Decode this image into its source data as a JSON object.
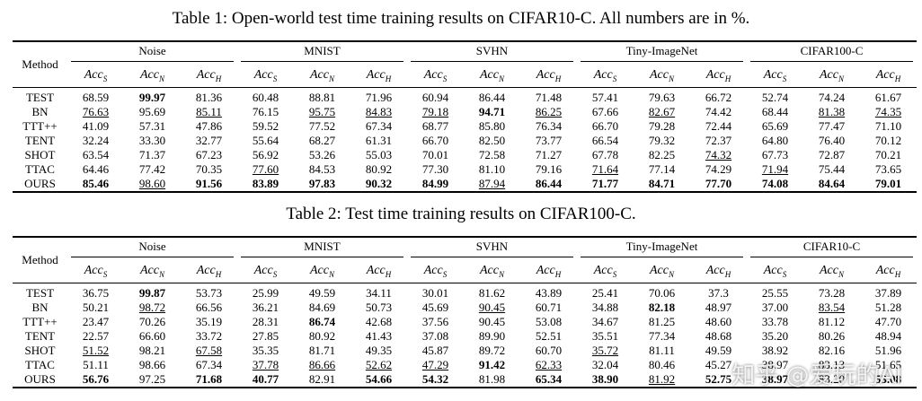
{
  "tables": [
    {
      "title": "Table 1: Open-world test time training results on CIFAR10-C. All numbers are in %.",
      "method_header": "Method",
      "groups": [
        "Noise",
        "MNIST",
        "SVHN",
        "Tiny-ImageNet",
        "CIFAR100-C"
      ],
      "subheaders": [
        {
          "base": "Acc",
          "sub": "S"
        },
        {
          "base": "Acc",
          "sub": "N"
        },
        {
          "base": "Acc",
          "sub": "H"
        }
      ],
      "rows": [
        {
          "method": "TEST",
          "values": [
            "68.59",
            "99.97",
            "81.36",
            "60.48",
            "88.81",
            "71.96",
            "60.94",
            "86.44",
            "71.48",
            "57.41",
            "79.63",
            "66.72",
            "52.74",
            "74.24",
            "61.67"
          ]
        },
        {
          "method": "BN",
          "values": [
            "76.63",
            "95.69",
            "85.11",
            "76.15",
            "95.75",
            "84.83",
            "79.18",
            "94.71",
            "86.25",
            "67.66",
            "82.67",
            "74.42",
            "68.44",
            "81.38",
            "74.35"
          ]
        },
        {
          "method": "TTT++",
          "values": [
            "41.09",
            "57.31",
            "47.86",
            "59.52",
            "77.52",
            "67.34",
            "68.77",
            "85.80",
            "76.34",
            "66.70",
            "79.28",
            "72.44",
            "65.69",
            "77.47",
            "71.10"
          ]
        },
        {
          "method": "TENT",
          "values": [
            "32.24",
            "33.30",
            "32.77",
            "55.64",
            "68.27",
            "61.31",
            "66.70",
            "82.50",
            "73.77",
            "66.54",
            "79.32",
            "72.37",
            "64.80",
            "76.40",
            "70.12"
          ]
        },
        {
          "method": "SHOT",
          "values": [
            "63.54",
            "71.37",
            "67.23",
            "56.92",
            "53.26",
            "55.03",
            "70.01",
            "72.58",
            "71.27",
            "67.78",
            "82.25",
            "74.32",
            "67.73",
            "72.87",
            "70.21"
          ]
        },
        {
          "method": "TTAC",
          "values": [
            "64.46",
            "77.42",
            "70.35",
            "77.60",
            "84.53",
            "80.92",
            "77.30",
            "81.10",
            "79.16",
            "71.64",
            "77.14",
            "74.29",
            "71.94",
            "75.44",
            "73.65"
          ]
        },
        {
          "method": "OURS",
          "values": [
            "85.46",
            "98.60",
            "91.56",
            "83.89",
            "97.83",
            "90.32",
            "84.99",
            "87.94",
            "86.44",
            "71.77",
            "84.71",
            "77.70",
            "74.08",
            "84.64",
            "79.01"
          ]
        }
      ],
      "bold": [
        [
          0,
          1
        ],
        [
          1,
          7
        ],
        [
          6,
          0
        ],
        [
          6,
          2
        ],
        [
          6,
          3
        ],
        [
          6,
          4
        ],
        [
          6,
          5
        ],
        [
          6,
          6
        ],
        [
          6,
          8
        ],
        [
          6,
          9
        ],
        [
          6,
          10
        ],
        [
          6,
          11
        ],
        [
          6,
          12
        ],
        [
          6,
          13
        ],
        [
          6,
          14
        ]
      ],
      "underline": [
        [
          1,
          0
        ],
        [
          1,
          2
        ],
        [
          1,
          4
        ],
        [
          1,
          5
        ],
        [
          1,
          6
        ],
        [
          1,
          8
        ],
        [
          1,
          10
        ],
        [
          1,
          13
        ],
        [
          1,
          14
        ],
        [
          4,
          11
        ],
        [
          5,
          3
        ],
        [
          5,
          9
        ],
        [
          5,
          12
        ],
        [
          6,
          1
        ],
        [
          6,
          7
        ]
      ]
    },
    {
      "title": "Table 2: Test time training results on CIFAR100-C.",
      "method_header": "Method",
      "groups": [
        "Noise",
        "MNIST",
        "SVHN",
        "Tiny-ImageNet",
        "CIFAR10-C"
      ],
      "subheaders": [
        {
          "base": "Acc",
          "sub": "S"
        },
        {
          "base": "Acc",
          "sub": "N"
        },
        {
          "base": "Acc",
          "sub": "H"
        }
      ],
      "rows": [
        {
          "method": "TEST",
          "values": [
            "36.75",
            "99.87",
            "53.73",
            "25.99",
            "49.59",
            "34.11",
            "30.01",
            "81.62",
            "43.89",
            "25.41",
            "70.06",
            "37.3",
            "25.55",
            "73.28",
            "37.89"
          ]
        },
        {
          "method": "BN",
          "values": [
            "50.21",
            "98.72",
            "66.56",
            "36.21",
            "84.69",
            "50.73",
            "45.69",
            "90.45",
            "60.71",
            "34.88",
            "82.18",
            "48.97",
            "37.00",
            "83.54",
            "51.28"
          ]
        },
        {
          "method": "TTT++",
          "values": [
            "23.47",
            "70.26",
            "35.19",
            "28.31",
            "86.74",
            "42.68",
            "37.56",
            "90.45",
            "53.08",
            "34.67",
            "81.25",
            "48.60",
            "33.78",
            "81.12",
            "47.70"
          ]
        },
        {
          "method": "TENT",
          "values": [
            "22.57",
            "66.60",
            "33.72",
            "27.85",
            "80.92",
            "41.43",
            "37.08",
            "89.90",
            "52.51",
            "35.51",
            "77.34",
            "48.68",
            "35.20",
            "80.26",
            "48.94"
          ]
        },
        {
          "method": "SHOT",
          "values": [
            "51.52",
            "98.21",
            "67.58",
            "35.35",
            "81.71",
            "49.35",
            "45.87",
            "89.72",
            "60.70",
            "35.72",
            "81.11",
            "49.59",
            "38.92",
            "82.16",
            "51.96"
          ]
        },
        {
          "method": "TTAC",
          "values": [
            "51.11",
            "98.66",
            "67.34",
            "37.78",
            "86.66",
            "52.62",
            "47.29",
            "91.42",
            "62.33",
            "32.04",
            "80.46",
            "45.27",
            "38.97",
            "83.13",
            "51.65"
          ]
        },
        {
          "method": "OURS",
          "values": [
            "56.76",
            "97.25",
            "71.68",
            "40.77",
            "82.91",
            "54.66",
            "54.32",
            "81.98",
            "65.34",
            "38.90",
            "81.92",
            "52.75",
            "38.97",
            "83.20",
            "53.08"
          ]
        }
      ],
      "bold": [
        [
          0,
          1
        ],
        [
          1,
          10
        ],
        [
          2,
          4
        ],
        [
          5,
          7
        ],
        [
          6,
          0
        ],
        [
          6,
          2
        ],
        [
          6,
          3
        ],
        [
          6,
          5
        ],
        [
          6,
          6
        ],
        [
          6,
          8
        ],
        [
          6,
          9
        ],
        [
          6,
          11
        ],
        [
          6,
          12
        ],
        [
          6,
          14
        ]
      ],
      "underline": [
        [
          1,
          1
        ],
        [
          1,
          7
        ],
        [
          1,
          13
        ],
        [
          4,
          0
        ],
        [
          4,
          2
        ],
        [
          4,
          9
        ],
        [
          5,
          3
        ],
        [
          5,
          4
        ],
        [
          5,
          5
        ],
        [
          5,
          6
        ],
        [
          5,
          8
        ],
        [
          6,
          10
        ]
      ]
    }
  ],
  "watermark": "知乎 @爱玩的AI"
}
